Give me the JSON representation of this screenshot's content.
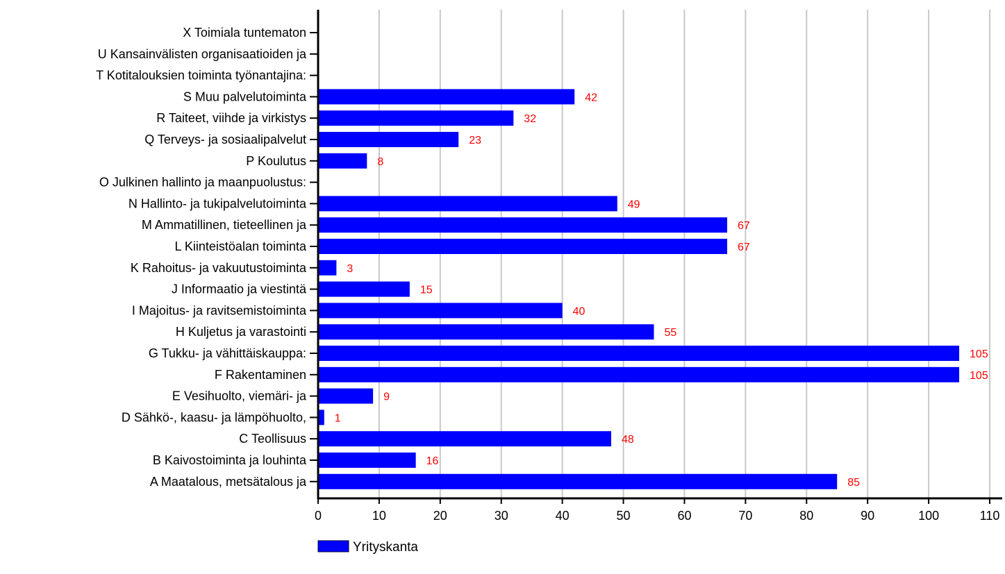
{
  "chart_data": {
    "type": "bar",
    "orientation": "horizontal",
    "categories": [
      "X Toimiala tuntematon",
      "U Kansainvälisten organisaatioiden ja",
      "T Kotitalouksien toiminta työnantajina:",
      "S Muu palvelutoiminta",
      "R Taiteet, viihde ja virkistys",
      "Q Terveys- ja sosiaalipalvelut",
      "P Koulutus",
      "O Julkinen hallinto ja maanpuolustus:",
      "N Hallinto- ja tukipalvelutoiminta",
      "M Ammatillinen, tieteellinen ja",
      "L Kiinteistöalan toiminta",
      "K Rahoitus- ja vakuutustoiminta",
      "J Informaatio ja viestintä",
      "I Majoitus- ja ravitsemistoiminta",
      "H Kuljetus ja varastointi",
      "G Tukku- ja vähittäiskauppa:",
      "F Rakentaminen",
      "E Vesihuolto, viemäri- ja",
      "D Sähkö-, kaasu- ja lämpöhuolto,",
      "C Teollisuus",
      "B Kaivostoiminta ja louhinta",
      "A Maatalous, metsätalous ja"
    ],
    "series": [
      {
        "name": "Yrityskanta",
        "color": "#0000ff",
        "values": [
          null,
          null,
          null,
          42,
          32,
          23,
          8,
          null,
          49,
          67,
          67,
          3,
          15,
          40,
          55,
          105,
          105,
          9,
          1,
          48,
          16,
          85
        ],
        "labels": [
          "",
          "",
          "",
          "42",
          "32",
          "23",
          "8",
          "",
          "49",
          "67",
          "67",
          "3",
          "15",
          "40",
          "55",
          "105",
          "105",
          "9",
          "1",
          "48",
          "16",
          "85"
        ]
      }
    ],
    "xlim": [
      0,
      110
    ],
    "xticks": [
      "0",
      "10",
      "20",
      "30",
      "40",
      "50",
      "60",
      "70",
      "80",
      "90",
      "100",
      "110"
    ],
    "grid": "vertical",
    "legend_position": "bottom-left",
    "colors": {
      "bar": "#0000ff",
      "data_label": "#ff0000",
      "grid": "#c8c8c8",
      "axis": "#000000"
    }
  }
}
